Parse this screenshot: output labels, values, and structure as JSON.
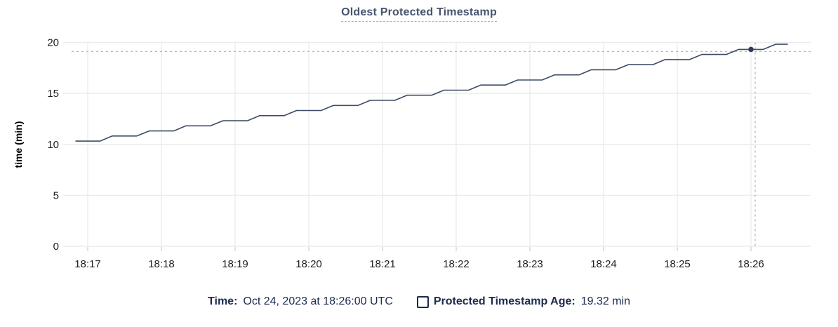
{
  "colors": {
    "line": "#3e4b66",
    "dot": "#2e3c57",
    "grid": "#ececee",
    "tick_stub": "#d4d4d8",
    "crosshair": "#a7bcc4",
    "axis_text": "#1d1d1f",
    "axis_title_text": "#000000",
    "title_text": "#46546f",
    "legend_text": "#1b2b4e"
  },
  "chart_data": {
    "type": "line",
    "title": "Oldest Protected Timestamp",
    "xlabel": "",
    "ylabel": "time (min)",
    "ylim": [
      0,
      20
    ],
    "y_ticks": [
      0,
      5,
      10,
      15,
      20
    ],
    "x_ticks": [
      "18:17",
      "18:18",
      "18:19",
      "18:20",
      "18:21",
      "18:22",
      "18:23",
      "18:24",
      "18:25",
      "18:26"
    ],
    "grid": true,
    "legend_position": "bottom",
    "series": [
      {
        "name": "Protected Timestamp Age",
        "unit": "min",
        "start_time": "18:16:50",
        "step_seconds": 10,
        "values": [
          10.32,
          10.32,
          10.32,
          10.82,
          10.82,
          10.82,
          11.32,
          11.32,
          11.32,
          11.82,
          11.82,
          11.82,
          12.32,
          12.32,
          12.32,
          12.82,
          12.82,
          12.82,
          13.32,
          13.32,
          13.32,
          13.82,
          13.82,
          13.82,
          14.32,
          14.32,
          14.32,
          14.82,
          14.82,
          14.82,
          15.32,
          15.32,
          15.32,
          15.82,
          15.82,
          15.82,
          16.32,
          16.32,
          16.32,
          16.82,
          16.82,
          16.82,
          17.32,
          17.32,
          17.32,
          17.82,
          17.82,
          17.82,
          18.32,
          18.32,
          18.32,
          18.82,
          18.82,
          18.82,
          19.32,
          19.32,
          19.32,
          19.82,
          19.82
        ]
      }
    ],
    "highlight": {
      "time": "18:26:00",
      "value": 19.32
    }
  },
  "legend": {
    "time_label": "Time:",
    "time_value": "Oct 24, 2023 at 18:26:00 UTC",
    "series_label": "Protected Timestamp Age:",
    "series_value": "19.32 min"
  }
}
